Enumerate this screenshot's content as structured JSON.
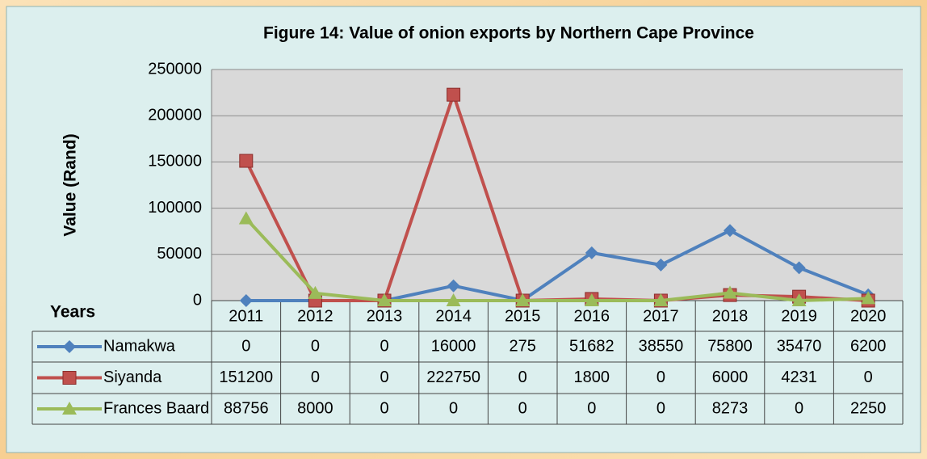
{
  "chart_data": {
    "type": "line",
    "title": "Figure 14: Value of onion exports by Northern Cape Province",
    "y_label": "Value (Rand)",
    "table_header": "Years",
    "categories": [
      "2011",
      "2012",
      "2013",
      "2014",
      "2015",
      "2016",
      "2017",
      "2018",
      "2019",
      "2020"
    ],
    "series": [
      {
        "name": "Namakwa",
        "color": "#4f81bd",
        "marker": "diamond",
        "values": [
          0,
          0,
          0,
          16000,
          275,
          51682,
          38550,
          75800,
          35470,
          6200
        ]
      },
      {
        "name": "Siyanda",
        "color": "#c0504d",
        "marker": "square",
        "values": [
          151200,
          0,
          0,
          222750,
          0,
          1800,
          0,
          6000,
          4231,
          0
        ]
      },
      {
        "name": "Frances Baard",
        "color": "#9bbb59",
        "marker": "triangle",
        "values": [
          88756,
          8000,
          0,
          0,
          0,
          0,
          0,
          8273,
          0,
          2250
        ]
      }
    ],
    "ylim": [
      0,
      250000
    ],
    "yticks": [
      0,
      50000,
      100000,
      150000,
      200000,
      250000
    ],
    "grid": true
  }
}
